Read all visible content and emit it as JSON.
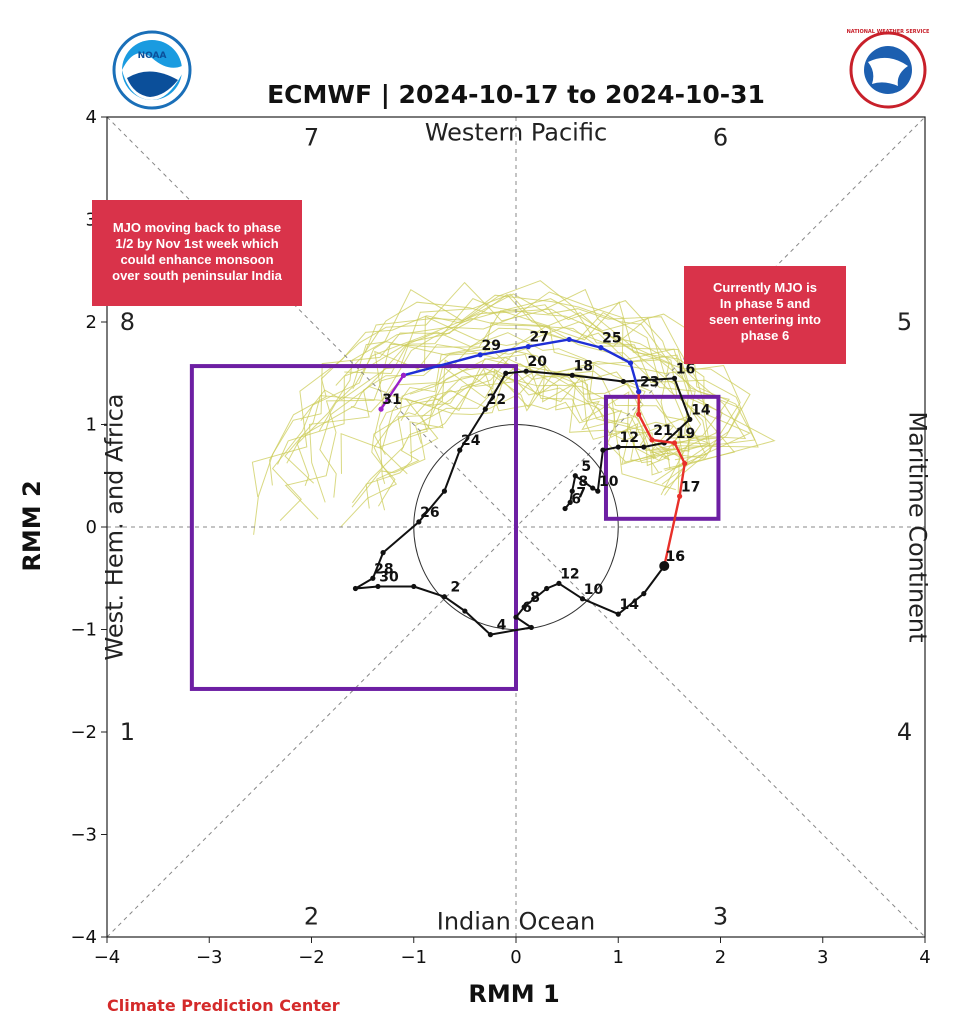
{
  "chart_data": {
    "type": "line",
    "title": "ECMWF | 2024-10-17 to 2024-10-31",
    "xlabel": "RMM 1",
    "ylabel": "RMM 2",
    "xlim": [
      -4,
      4
    ],
    "ylim": [
      -4,
      4
    ],
    "xticks": [
      "−4",
      "−3",
      "−2",
      "−1",
      "0",
      "1",
      "2",
      "3",
      "4"
    ],
    "yticks": [
      "−4",
      "−3",
      "−2",
      "−1",
      "0",
      "1",
      "2",
      "3",
      "4"
    ],
    "phases": [
      {
        "label": "1",
        "x": -3.8,
        "y": -2
      },
      {
        "label": "2",
        "x": -2,
        "y": -3.8
      },
      {
        "label": "3",
        "x": 2,
        "y": -3.8
      },
      {
        "label": "4",
        "x": 3.8,
        "y": -2
      },
      {
        "label": "5",
        "x": 3.8,
        "y": 2
      },
      {
        "label": "6",
        "x": 2,
        "y": 3.8
      },
      {
        "label": "7",
        "x": -2,
        "y": 3.8
      },
      {
        "label": "8",
        "x": -3.8,
        "y": 2
      }
    ],
    "regions": {
      "top": "Western Pacific",
      "bottom": "Indian Ocean",
      "left": "West. Hem. and Africa",
      "right": "Maritime Continent"
    },
    "observed": [
      {
        "x": 0.48,
        "y": 0.18,
        "label": "6"
      },
      {
        "x": 0.53,
        "y": 0.24,
        "label": "7"
      },
      {
        "x": 0.55,
        "y": 0.35,
        "label": "8"
      },
      {
        "x": 0.58,
        "y": 0.5,
        "label": "5"
      },
      {
        "x": 0.75,
        "y": 0.38
      },
      {
        "x": 0.8,
        "y": 0.35,
        "label": "10"
      },
      {
        "x": 0.85,
        "y": 0.75
      },
      {
        "x": 1.0,
        "y": 0.78,
        "label": "12"
      },
      {
        "x": 1.25,
        "y": 0.78
      },
      {
        "x": 1.45,
        "y": 0.82
      },
      {
        "x": 1.7,
        "y": 1.05,
        "label": "14"
      },
      {
        "x": 1.55,
        "y": 1.45,
        "label": "16"
      },
      {
        "x": 1.05,
        "y": 1.42
      },
      {
        "x": 0.55,
        "y": 1.48,
        "label": "18"
      },
      {
        "x": 0.1,
        "y": 1.52,
        "label": "20"
      },
      {
        "x": -0.1,
        "y": 1.5
      },
      {
        "x": -0.3,
        "y": 1.15,
        "label": "22"
      },
      {
        "x": -0.55,
        "y": 0.75,
        "label": "24"
      },
      {
        "x": -0.7,
        "y": 0.35
      },
      {
        "x": -0.95,
        "y": 0.05,
        "label": "26"
      },
      {
        "x": -1.3,
        "y": -0.25
      },
      {
        "x": -1.4,
        "y": -0.5,
        "label": "28"
      },
      {
        "x": -1.57,
        "y": -0.6
      },
      {
        "x": -1.35,
        "y": -0.58,
        "label": "30"
      },
      {
        "x": -1.0,
        "y": -0.58
      },
      {
        "x": -0.7,
        "y": -0.68,
        "label": "2"
      },
      {
        "x": -0.5,
        "y": -0.82
      },
      {
        "x": -0.25,
        "y": -1.05,
        "label": "4"
      },
      {
        "x": 0.15,
        "y": -0.98
      },
      {
        "x": 0.0,
        "y": -0.88,
        "label": "6"
      },
      {
        "x": 0.08,
        "y": -0.78,
        "label": "8"
      },
      {
        "x": 0.3,
        "y": -0.6
      },
      {
        "x": 0.42,
        "y": -0.55,
        "label": "12"
      },
      {
        "x": 0.65,
        "y": -0.7,
        "label": "10"
      },
      {
        "x": 1.0,
        "y": -0.85,
        "label": "14"
      },
      {
        "x": 1.25,
        "y": -0.65
      },
      {
        "x": 1.45,
        "y": -0.38,
        "label": "16"
      }
    ],
    "forecast_red": [
      {
        "x": 1.45,
        "y": -0.38,
        "label": "16"
      },
      {
        "x": 1.6,
        "y": 0.3,
        "label": "17"
      },
      {
        "x": 1.65,
        "y": 0.62
      },
      {
        "x": 1.55,
        "y": 0.82,
        "label": "19"
      },
      {
        "x": 1.33,
        "y": 0.85,
        "label": "21"
      },
      {
        "x": 1.2,
        "y": 1.1
      },
      {
        "x": 1.2,
        "y": 1.32
      }
    ],
    "forecast_blue": [
      {
        "x": 1.2,
        "y": 1.32,
        "label": "23"
      },
      {
        "x": 1.12,
        "y": 1.6
      },
      {
        "x": 0.83,
        "y": 1.75,
        "label": "25"
      },
      {
        "x": 0.52,
        "y": 1.83
      },
      {
        "x": 0.12,
        "y": 1.76,
        "label": "27"
      },
      {
        "x": -0.35,
        "y": 1.68,
        "label": "29"
      },
      {
        "x": -1.1,
        "y": 1.48
      }
    ],
    "forecast_purple": [
      {
        "x": -1.1,
        "y": 1.48
      },
      {
        "x": -1.32,
        "y": 1.15,
        "label": "31"
      }
    ],
    "colors": {
      "observed": "#111111",
      "forecast_red": "#e8302a",
      "forecast_blue": "#1f2fd6",
      "forecast_purple": "#9a22c9",
      "ensemble": "#cccc5a",
      "box": "#6d1fa3",
      "note_bg": "#d9334a",
      "credit": "#d42a2a"
    }
  },
  "annotations": {
    "left_note": [
      "MJO moving back to phase",
      "1/2 by Nov 1st week which",
      "could enhance monsoon",
      "over south peninsular India"
    ],
    "right_note": [
      "Currently MJO is",
      "In phase 5 and",
      "seen entering into",
      "phase 6"
    ]
  },
  "logos": {
    "left": {
      "icon": "noaa-logo",
      "text": "NOAA"
    },
    "right": {
      "icon": "nws-logo",
      "text": "NATIONAL WEATHER SERVICE"
    }
  },
  "credit": "Climate Prediction Center"
}
